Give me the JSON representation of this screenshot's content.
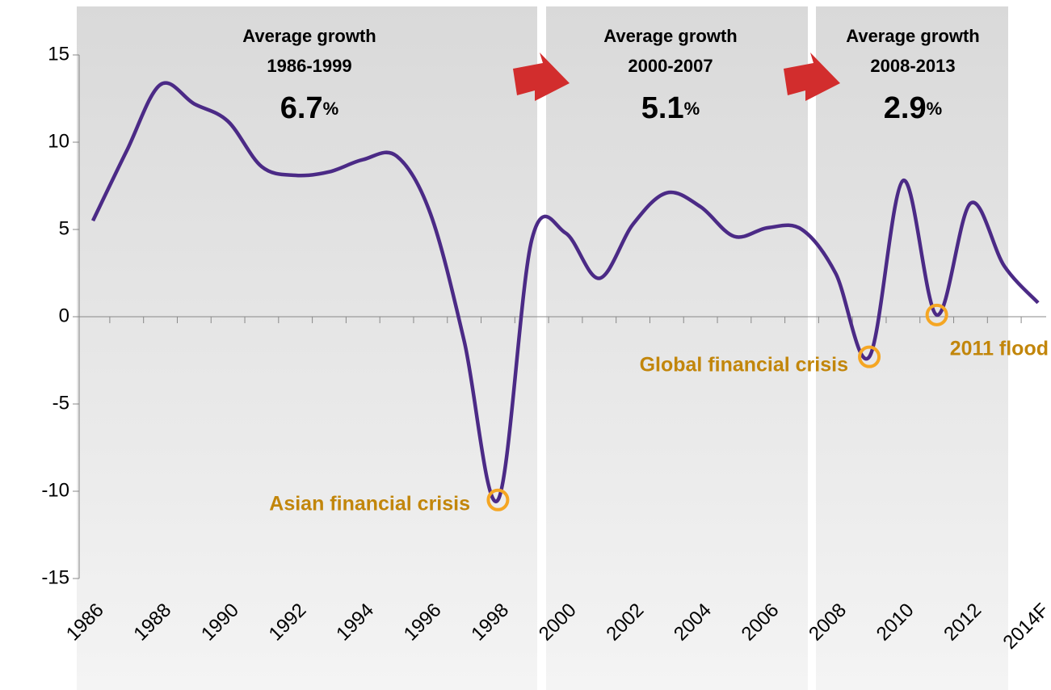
{
  "chart_data": {
    "type": "line",
    "categories": [
      "1986",
      null,
      "1988",
      null,
      "1990",
      null,
      "1992",
      null,
      "1994",
      null,
      "1996",
      null,
      "1998",
      null,
      "2000",
      null,
      "2002",
      null,
      "2004",
      null,
      "2006",
      null,
      "2008",
      null,
      "2010",
      null,
      "2012",
      null,
      "2014F"
    ],
    "series": [
      {
        "color": "#4b2a86",
        "values": [
          5.5,
          9.5,
          13.3,
          12.2,
          11.2,
          8.6,
          8.1,
          8.3,
          9.0,
          9.2,
          5.9,
          -1.4,
          -10.5,
          4.4,
          4.8,
          2.2,
          5.3,
          7.1,
          6.3,
          4.6,
          5.1,
          5.0,
          2.5,
          -2.3,
          7.8,
          0.1,
          6.5,
          2.9,
          0.8
        ]
      }
    ],
    "ylim": [
      -15,
      15
    ],
    "yticks": [
      -15,
      -10,
      -5,
      0,
      5,
      10,
      15
    ],
    "periods": [
      {
        "heading": "Average growth",
        "period": "1986-1999",
        "value": "6.7",
        "unit": "%"
      },
      {
        "heading": "Average growth",
        "period": "2000-2007",
        "value": "5.1",
        "unit": "%"
      },
      {
        "heading": "Average growth",
        "period": "2008-2013",
        "value": "2.9",
        "unit": "%"
      }
    ],
    "events": [
      "Asian financial crisis",
      "Global financial crisis",
      "2011 flood"
    ]
  }
}
